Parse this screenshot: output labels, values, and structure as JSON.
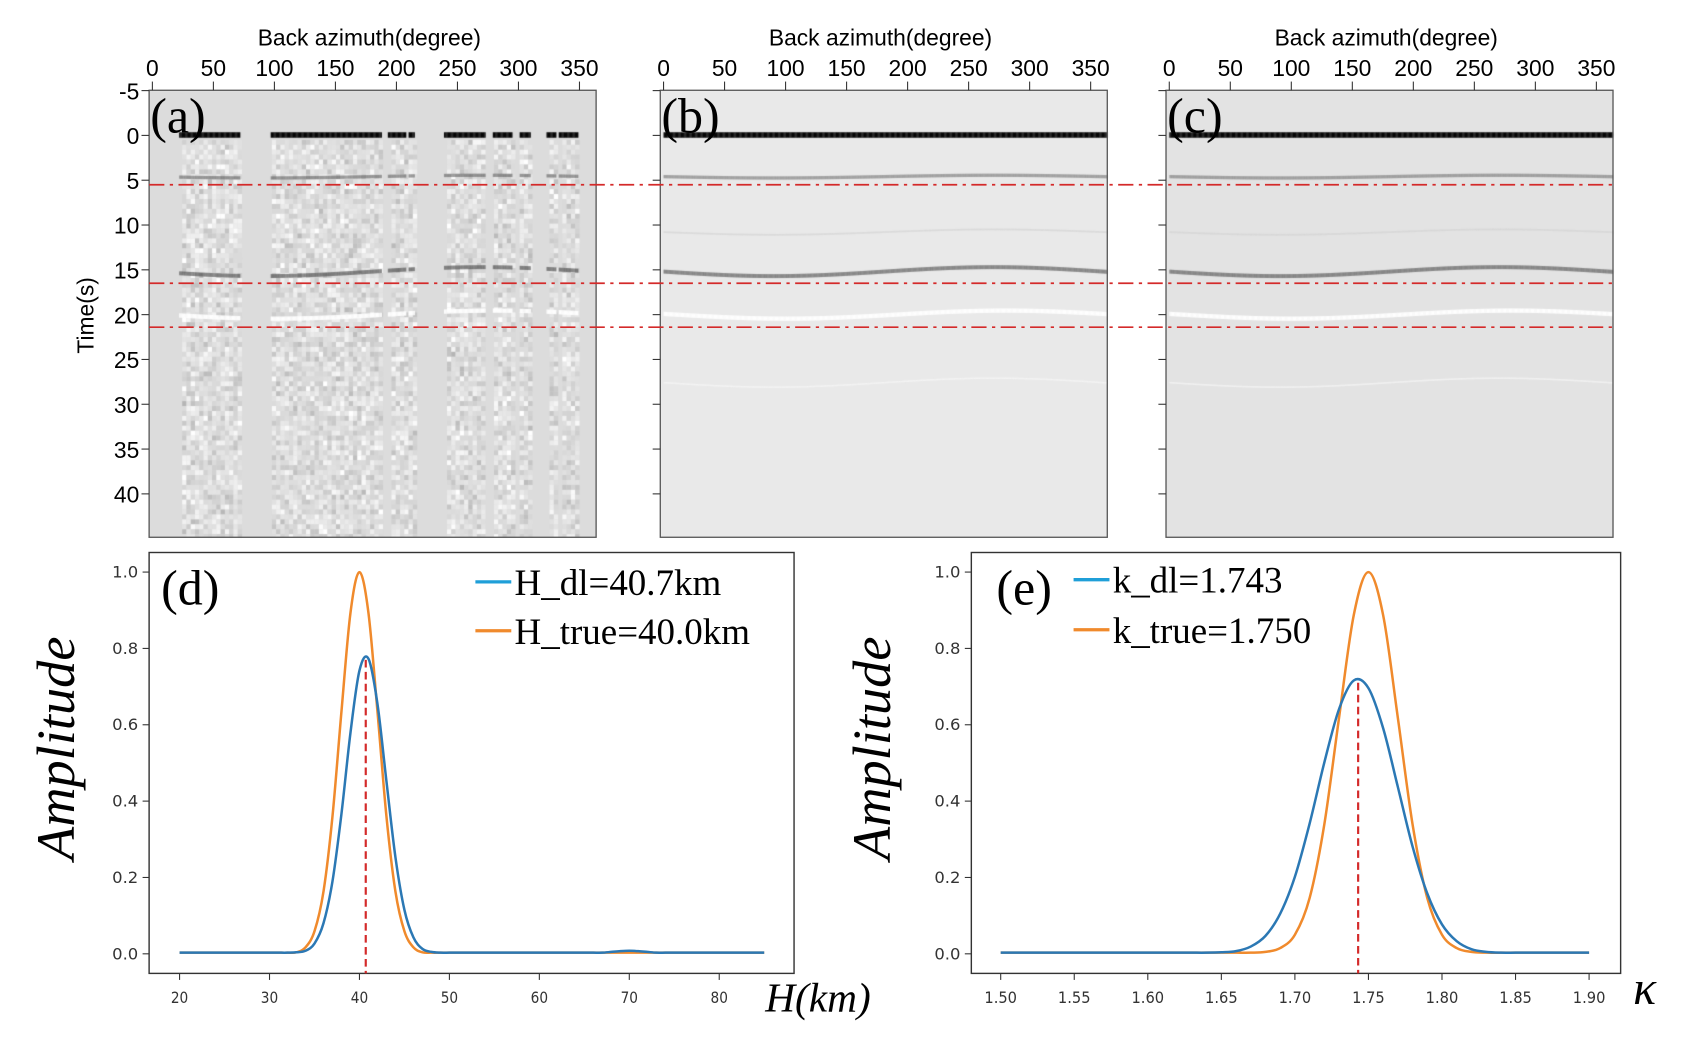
{
  "reference_lines": {
    "times_s": [
      5.5,
      16.5,
      21.4
    ],
    "color": "#d42a2a",
    "style": "dash-dot"
  },
  "chart_data": [
    {
      "type": "heatmap",
      "panel_label": "(a)",
      "xlabel": "Back azimuth(degree)",
      "ylabel": "Time(s)",
      "xticks": [
        "0",
        "50",
        "100",
        "150",
        "200",
        "250",
        "300",
        "350"
      ],
      "yticks": [
        "-5",
        "0",
        "5",
        "10",
        "15",
        "20",
        "25",
        "30",
        "35",
        "40"
      ],
      "show_ytick_labels": true,
      "xlim": [
        0,
        365
      ],
      "ylim": [
        -5,
        45
      ],
      "coverage_deg": [
        [
          22,
          71
        ],
        [
          97,
          187
        ],
        [
          193,
          207
        ],
        [
          210,
          214
        ],
        [
          239,
          272
        ],
        [
          279,
          294
        ],
        [
          301,
          309
        ],
        [
          323,
          330
        ],
        [
          333,
          348
        ]
      ],
      "noisy": true
    },
    {
      "type": "heatmap",
      "panel_label": "(b)",
      "xlabel": "Back azimuth(degree)",
      "xticks": [
        "0",
        "50",
        "100",
        "150",
        "200",
        "250",
        "300",
        "350"
      ],
      "yticks": [
        "-5",
        "0",
        "5",
        "10",
        "15",
        "20",
        "25",
        "30",
        "35",
        "40"
      ],
      "show_ytick_labels": false,
      "xlim": [
        0,
        365
      ],
      "ylim": [
        -5,
        45
      ],
      "noisy": false
    },
    {
      "type": "heatmap",
      "panel_label": "(c)",
      "xlabel": "Back azimuth(degree)",
      "xticks": [
        "0",
        "50",
        "100",
        "150",
        "200",
        "250",
        "300",
        "350"
      ],
      "yticks": [
        "-5",
        "0",
        "5",
        "10",
        "15",
        "20",
        "25",
        "30",
        "35",
        "40"
      ],
      "show_ytick_labels": false,
      "xlim": [
        0,
        365
      ],
      "ylim": [
        -5,
        45
      ],
      "noisy": false
    },
    {
      "type": "line",
      "panel_label": "(d)",
      "xlabel": "H(km)",
      "ylabel": "Amplitude",
      "xticks": [
        "20",
        "30",
        "40",
        "50",
        "60",
        "70",
        "80"
      ],
      "yticks": [
        "0.0",
        "0.2",
        "0.4",
        "0.6",
        "0.8",
        "1.0"
      ],
      "xlim": [
        17,
        88
      ],
      "ylim": [
        -0.05,
        1.05
      ],
      "x": [
        20,
        21,
        22,
        23,
        24,
        25,
        26,
        27,
        28,
        29,
        30,
        31,
        32,
        33,
        34,
        35,
        36,
        37,
        38,
        39,
        40,
        41,
        42,
        43,
        44,
        45,
        46,
        47,
        48,
        49,
        50,
        51,
        52,
        53,
        54,
        55,
        56,
        57,
        58,
        59,
        60,
        61,
        62,
        63,
        64,
        65,
        66,
        67,
        68,
        69,
        70,
        71,
        72,
        73,
        74,
        75,
        76,
        77,
        78,
        79,
        80,
        81,
        82,
        83,
        84,
        85
      ],
      "series": [
        {
          "name": "H_true=40.0km",
          "color": "#f08a2c",
          "values": [
            0.003,
            0.003,
            0.003,
            0.003,
            0.003,
            0.003,
            0.003,
            0.003,
            0.003,
            0.003,
            0.003,
            0.003,
            0.003,
            0.004,
            0.017,
            0.059,
            0.163,
            0.36,
            0.635,
            0.893,
            1.0,
            0.893,
            0.635,
            0.36,
            0.163,
            0.059,
            0.017,
            0.004,
            0.003,
            0.003,
            0.003,
            0.003,
            0.003,
            0.003,
            0.003,
            0.003,
            0.003,
            0.003,
            0.003,
            0.003,
            0.003,
            0.003,
            0.003,
            0.003,
            0.003,
            0.003,
            0.003,
            0.003,
            0.003,
            0.003,
            0.003,
            0.003,
            0.003,
            0.003,
            0.003,
            0.003,
            0.003,
            0.003,
            0.003,
            0.003,
            0.003,
            0.003,
            0.003,
            0.003,
            0.003,
            0.003
          ]
        },
        {
          "name": "H_dl=40.7km",
          "color": "#2b78b4",
          "values": [
            0.003,
            0.003,
            0.003,
            0.003,
            0.003,
            0.003,
            0.003,
            0.003,
            0.003,
            0.003,
            0.003,
            0.003,
            0.003,
            0.004,
            0.008,
            0.027,
            0.08,
            0.19,
            0.367,
            0.579,
            0.742,
            0.773,
            0.655,
            0.452,
            0.253,
            0.115,
            0.043,
            0.013,
            0.005,
            0.003,
            0.003,
            0.003,
            0.003,
            0.003,
            0.003,
            0.003,
            0.003,
            0.003,
            0.003,
            0.003,
            0.003,
            0.003,
            0.003,
            0.003,
            0.003,
            0.003,
            0.003,
            0.003,
            0.005,
            0.007,
            0.008,
            0.007,
            0.005,
            0.003,
            0.003,
            0.003,
            0.003,
            0.003,
            0.003,
            0.003,
            0.003,
            0.003,
            0.003,
            0.003,
            0.003,
            0.003
          ]
        }
      ],
      "legend": [
        {
          "label": "H_dl=40.7km",
          "color": "#1f9fd8"
        },
        {
          "label": "H_true=40.0km",
          "color": "#f08a2c"
        }
      ],
      "legend_position": "top-right",
      "marker_line": {
        "x": 40.7,
        "y_top": 0.77,
        "color": "#d42a2a",
        "style": "dashed"
      }
    },
    {
      "type": "line",
      "panel_label": "(e)",
      "xlabel": "κ",
      "ylabel": "Amplitude",
      "xticks": [
        "1.50",
        "1.55",
        "1.60",
        "1.65",
        "1.70",
        "1.75",
        "1.80",
        "1.85",
        "1.90"
      ],
      "yticks": [
        "0.0",
        "0.2",
        "0.4",
        "0.6",
        "0.8",
        "1.0"
      ],
      "xlim": [
        1.48,
        1.92
      ],
      "ylim": [
        -0.05,
        1.05
      ],
      "x": [
        1.5,
        1.51,
        1.52,
        1.53,
        1.54,
        1.55,
        1.56,
        1.57,
        1.58,
        1.59,
        1.6,
        1.61,
        1.62,
        1.63,
        1.64,
        1.65,
        1.66,
        1.67,
        1.68,
        1.69,
        1.7,
        1.71,
        1.72,
        1.73,
        1.74,
        1.75,
        1.76,
        1.77,
        1.78,
        1.79,
        1.8,
        1.81,
        1.82,
        1.83,
        1.84,
        1.85,
        1.86,
        1.87,
        1.88,
        1.89,
        1.9
      ],
      "series": [
        {
          "name": "k_true=1.750",
          "color": "#f08a2c",
          "values": [
            0.003,
            0.003,
            0.003,
            0.003,
            0.003,
            0.003,
            0.003,
            0.003,
            0.003,
            0.003,
            0.003,
            0.003,
            0.003,
            0.003,
            0.003,
            0.003,
            0.003,
            0.003,
            0.005,
            0.015,
            0.05,
            0.146,
            0.339,
            0.618,
            0.887,
            1.0,
            0.887,
            0.618,
            0.339,
            0.146,
            0.05,
            0.015,
            0.005,
            0.003,
            0.003,
            0.003,
            0.003,
            0.003,
            0.003,
            0.003,
            0.003
          ]
        },
        {
          "name": "k_dl=1.743",
          "color": "#2b78b4",
          "values": [
            0.003,
            0.003,
            0.003,
            0.003,
            0.003,
            0.003,
            0.003,
            0.003,
            0.003,
            0.003,
            0.003,
            0.003,
            0.003,
            0.003,
            0.003,
            0.004,
            0.007,
            0.019,
            0.047,
            0.105,
            0.202,
            0.341,
            0.501,
            0.641,
            0.716,
            0.696,
            0.591,
            0.437,
            0.281,
            0.158,
            0.077,
            0.033,
            0.012,
            0.005,
            0.003,
            0.003,
            0.003,
            0.003,
            0.003,
            0.003,
            0.003
          ]
        }
      ],
      "legend": [
        {
          "label": "k_dl=1.743",
          "color": "#1f9fd8"
        },
        {
          "label": "k_true=1.750",
          "color": "#f08a2c"
        }
      ],
      "legend_position": "top-left",
      "marker_line": {
        "x": 1.743,
        "y_top": 0.71,
        "color": "#d42a2a",
        "style": "dashed"
      }
    }
  ]
}
